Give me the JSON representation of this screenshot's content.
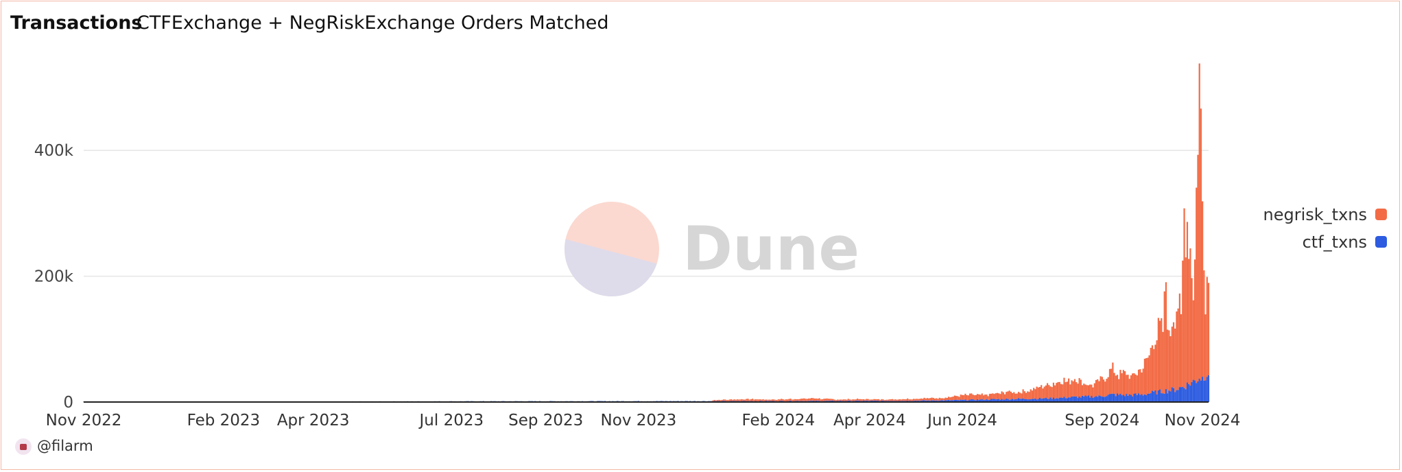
{
  "header": {
    "title": "Transactions",
    "subtitle": "CTFExchange + NegRiskExchange Orders Matched"
  },
  "author": {
    "handle": "@filarm",
    "avatar_icon": "user-avatar-icon"
  },
  "watermark": {
    "text": "Dune"
  },
  "chart_data": {
    "type": "bar",
    "stacked": true,
    "x_start": "2022-11-01",
    "x_end": "2024-11-10",
    "x_ticks": [
      "Nov 2022",
      "Feb 2023",
      "Apr 2023",
      "Jul 2023",
      "Sep 2023",
      "Nov 2023",
      "Feb 2024",
      "Apr 2024",
      "Jun 2024",
      "Sep 2024",
      "Nov 2024"
    ],
    "y_ticks": [
      0,
      200000,
      400000
    ],
    "y_tick_labels": [
      "0",
      "200k",
      "400k"
    ],
    "ylim": [
      0,
      530000
    ],
    "grid": true,
    "legend_position": "right",
    "series": [
      {
        "name": "negrisk_txns",
        "color": "#f26b45",
        "points": [
          [
            "2023-12-20",
            1500
          ],
          [
            "2024-01-05",
            2500
          ],
          [
            "2024-01-15",
            3000
          ],
          [
            "2024-01-25",
            2000
          ],
          [
            "2024-02-10",
            3000
          ],
          [
            "2024-02-25",
            4000
          ],
          [
            "2024-03-10",
            2000
          ],
          [
            "2024-03-25",
            2500
          ],
          [
            "2024-04-10",
            2000
          ],
          [
            "2024-04-25",
            3000
          ],
          [
            "2024-05-10",
            3500
          ],
          [
            "2024-05-20",
            4000
          ],
          [
            "2024-05-28",
            6000
          ],
          [
            "2024-06-05",
            8000
          ],
          [
            "2024-06-15",
            7000
          ],
          [
            "2024-06-25",
            9000
          ],
          [
            "2024-07-01",
            12000
          ],
          [
            "2024-07-08",
            10000
          ],
          [
            "2024-07-15",
            14000
          ],
          [
            "2024-07-22",
            18000
          ],
          [
            "2024-07-29",
            22000
          ],
          [
            "2024-08-05",
            28000
          ],
          [
            "2024-08-10",
            25000
          ],
          [
            "2024-08-15",
            30000
          ],
          [
            "2024-08-20",
            20000
          ],
          [
            "2024-08-25",
            18000
          ],
          [
            "2024-08-30",
            24000
          ],
          [
            "2024-09-04",
            32000
          ],
          [
            "2024-09-08",
            40000
          ],
          [
            "2024-09-12",
            30000
          ],
          [
            "2024-09-16",
            36000
          ],
          [
            "2024-09-20",
            28000
          ],
          [
            "2024-09-24",
            34000
          ],
          [
            "2024-09-28",
            45000
          ],
          [
            "2024-10-02",
            60000
          ],
          [
            "2024-10-05",
            85000
          ],
          [
            "2024-10-08",
            95000
          ],
          [
            "2024-10-11",
            100000
          ],
          [
            "2024-10-13",
            175000
          ],
          [
            "2024-10-15",
            80000
          ],
          [
            "2024-10-17",
            110000
          ],
          [
            "2024-10-19",
            130000
          ],
          [
            "2024-10-21",
            140000
          ],
          [
            "2024-10-23",
            100000
          ],
          [
            "2024-10-25",
            280000
          ],
          [
            "2024-10-27",
            260000
          ],
          [
            "2024-10-29",
            220000
          ],
          [
            "2024-10-31",
            145000
          ],
          [
            "2024-11-01",
            190000
          ],
          [
            "2024-11-02",
            300000
          ],
          [
            "2024-11-03",
            420000
          ],
          [
            "2024-11-04",
            480000
          ],
          [
            "2024-11-05",
            400000
          ],
          [
            "2024-11-06",
            280000
          ],
          [
            "2024-11-07",
            220000
          ],
          [
            "2024-11-08",
            140000
          ],
          [
            "2024-11-09",
            160000
          ],
          [
            "2024-11-10",
            150000
          ]
        ]
      },
      {
        "name": "ctf_txns",
        "color": "#2d5ce0",
        "points": [
          [
            "2022-11-01",
            500
          ],
          [
            "2023-03-01",
            700
          ],
          [
            "2023-07-10",
            1200
          ],
          [
            "2023-12-20",
            1500
          ],
          [
            "2024-02-10",
            1800
          ],
          [
            "2024-04-25",
            2000
          ],
          [
            "2024-05-28",
            3000
          ],
          [
            "2024-06-15",
            4000
          ],
          [
            "2024-07-08",
            5000
          ],
          [
            "2024-07-29",
            6000
          ],
          [
            "2024-08-15",
            8000
          ],
          [
            "2024-08-30",
            9000
          ],
          [
            "2024-09-08",
            12000
          ],
          [
            "2024-09-16",
            11000
          ],
          [
            "2024-09-28",
            12000
          ],
          [
            "2024-10-02",
            14000
          ],
          [
            "2024-10-08",
            16000
          ],
          [
            "2024-10-13",
            18000
          ],
          [
            "2024-10-19",
            20000
          ],
          [
            "2024-10-25",
            25000
          ],
          [
            "2024-10-29",
            30000
          ],
          [
            "2024-11-02",
            35000
          ],
          [
            "2024-11-04",
            40000
          ],
          [
            "2024-11-06",
            38000
          ],
          [
            "2024-11-08",
            45000
          ],
          [
            "2024-11-10",
            48000
          ]
        ]
      }
    ]
  }
}
